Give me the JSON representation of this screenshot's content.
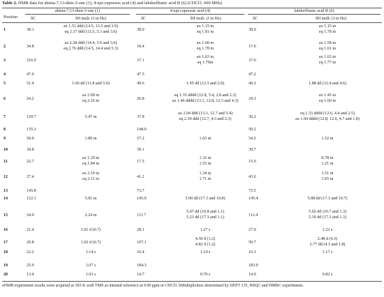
{
  "caption": {
    "label": "Table 2.",
    "text": "NMR data for abieta-7,13-dien-3-one (1), 4-epi-cupressic acid (4) and labdorffianic acid B (6) (CDCl3, 600 MHz)"
  },
  "headers": {
    "position": "Position",
    "groups": [
      "abieta-7,13-dien-3-one (1)",
      "4-epi-cupressic acid (4)",
      "labdorffianic acid B (6)"
    ],
    "dc": "δC",
    "dh": "δH mult. (J in Hz)"
  },
  "rows": [
    {
      "pos": "1",
      "c1": "38.1",
      "h1": [
        "ax 1.51 ddd (14.5, 13.5 and 3.9)",
        "eq 2.17 ddd (13.5, 5.3 and 3.6)"
      ],
      "c4": "38.0",
      "h4": [
        "ax 1.15 m",
        "eq 1.81 m"
      ],
      "c6": "38.0",
      "h6": [
        "ax 1.15 m",
        "eq 1.78 m"
      ]
    },
    {
      "pos": "2",
      "c1": "34.8",
      "h1": [
        "ax 2.28 ddd (14.4, 3.9 and 3.6)",
        "eq 2.76 ddd (14.5, 14.4 and 5.3)"
      ],
      "c4": "18.4",
      "h4": [
        "ax 1.60 m",
        "eq 1.78 m"
      ],
      "c6": "17.6",
      "h6": [
        "ax 1.58 m",
        "eq 1.61 m"
      ]
    },
    {
      "pos": "3",
      "c1": "216.9",
      "h1": [
        ""
      ],
      "c4": "37.1",
      "h4": [
        "ax 1.63 m",
        "eq 1.79m"
      ],
      "c6": "37.0",
      "h6": [
        "ax 1.63 m",
        "eq 1.77 m"
      ]
    },
    {
      "pos": "4",
      "c1": "47.6",
      "h1": [
        ""
      ],
      "c4": "47.5",
      "h4": [
        ""
      ],
      "c6": "47.2",
      "h6": [
        ""
      ]
    },
    {
      "pos": "5",
      "c1": "51.4",
      "h1": [
        "1.66 dd (11.8 and 5.0)"
      ],
      "c4": "49.6",
      "h4": [
        "1.95 dd (12.5 and 2.8)"
      ],
      "c6": "49.2",
      "h6": [
        "1.88 dd (12.4 and 4.6)"
      ]
    },
    {
      "pos": "6",
      "c1": "24.2",
      "h1": [
        "ax 2.09 m",
        "eq 2.16 m"
      ],
      "c4": "26.8",
      "h4": [
        "eq 1.35 dddd (12.8, 5.4, 2.8 and 2.3)",
        "ax 1.46 dddd (13.1, 12.8, 12.5 and 4.3)"
      ],
      "c6": "24.3",
      "h6": [
        "ax 1.45 m",
        "eq 1.60 m"
      ]
    },
    {
      "pos": "7",
      "c1": "120.7",
      "h1": [
        "5.47 m"
      ],
      "c4": "37.8",
      "h4": [
        "ax 2.04 ddd (13.1, 12.7 and 5.4)",
        "eq 2.34 ddd (12.7, 4.3 and 2.3)"
      ],
      "c6": "36.2",
      "h6": [
        "eq 1.33 dddd (12.6, 4.4 and 2.5)",
        "ax 1.94 dddd (12.8, 12.6, 4.7 and 1.8)"
      ]
    },
    {
      "pos": "8",
      "c1": "135.3",
      "h1": [
        ""
      ],
      "c4": "148.0",
      "h4": [
        ""
      ],
      "c6": "59.2",
      "h6": [
        ""
      ]
    },
    {
      "pos": "9",
      "c1": "50.0",
      "h1": [
        "1.89 m"
      ],
      "c4": "57.2",
      "h4": [
        "1.65 m"
      ],
      "c6": "54.2",
      "h6": [
        "1.52 m"
      ]
    },
    {
      "pos": "10",
      "c1": "34.8",
      "h1": [
        ""
      ],
      "c4": "39.1",
      "h4": [
        ""
      ],
      "c6": "39.7",
      "h6": [
        ""
      ]
    },
    {
      "pos": "11",
      "c1": "22.7",
      "h1": [
        "ax 1.29 m",
        "eq 1.84 m"
      ],
      "c4": "17.5",
      "h4": [
        "1.32 m",
        "1.55 m"
      ],
      "c6": "15.9",
      "h6": [
        "0.78 m",
        "1.21 m"
      ]
    },
    {
      "pos": "12",
      "c1": "27.4",
      "h1": [
        "ax 2.10 m",
        "eq 2.11 m"
      ],
      "c4": "41.2",
      "h4": [
        "1.34 m",
        "1.71 m"
      ],
      "c6": "43.6",
      "h6": [
        "1.51 m",
        "1.65 m"
      ]
    },
    {
      "pos": "13",
      "c1": "145.8",
      "h1": [
        ""
      ],
      "c4": "73.7",
      "h4": [
        ""
      ],
      "c6": "73.5",
      "h6": [
        ""
      ]
    },
    {
      "pos": "14",
      "c1": "122.1",
      "h1": [
        "5.81 m"
      ],
      "c4": "145.0",
      "h4": [
        "5.90 dd (17.3 and 10.8)"
      ],
      "c6": "145.4",
      "h6": [
        "5.88 dd (17.3 and 10.7)"
      ]
    },
    {
      "pos": "15",
      "c1": "34.9",
      "h1": [
        "2.24 m"
      ],
      "c4": "111.7",
      "h4": [
        "5.07 dd (10.8 and 1.1)",
        "5.21 dd (17.3 and 1.1)"
      ],
      "c6": "111.4",
      "h6": [
        "5.02 dd (10.7 and 1.3)",
        "5.19 dd (17.3 and 1.3)"
      ]
    },
    {
      "pos": "16",
      "c1": "21.4",
      "h1": [
        "1.01 d (6.7)"
      ],
      "c4": "28.1",
      "h4": [
        "1.27 s"
      ],
      "c6": "27.9",
      "h6": [
        "1.22 s"
      ]
    },
    {
      "pos": "17",
      "c1": "20.8",
      "h1": [
        "1.02 d (6.7)"
      ],
      "c4": "107.1",
      "h4": [
        "4.50 d (1.2)",
        "4.82 d (1.2)"
      ],
      "c6": "50.7",
      "h6": [
        "2.48 d (4.3)",
        "2.77 dd (4.3 and 1.8)"
      ]
    },
    {
      "pos": "18",
      "c1": "22.2",
      "h1": [
        "1.14 s"
      ],
      "c4": "16.4",
      "h4": [
        "1.14 s"
      ],
      "c6": "16.3",
      "h6": [
        "1.17 s"
      ]
    },
    {
      "pos": "19",
      "c1": "25.0",
      "h1": [
        "1.07 s"
      ],
      "c4": "184.3",
      "h4": [
        ""
      ],
      "c6": "183.9",
      "h6": [
        ""
      ]
    },
    {
      "pos": "20",
      "c1": "13.4",
      "h1": [
        "1.03 s"
      ],
      "c4": "14.7",
      "h4": [
        "0.70 s"
      ],
      "c6": "14.9",
      "h6": [
        "0.82 s"
      ]
    }
  ],
  "footnote": "aNMR experiment results were acquired at 303 K with TMS as internal reference at 0.00 ppm in CDCl3. bMultiplicities determined by DEPT 135, HSQC and HMBC experiments."
}
